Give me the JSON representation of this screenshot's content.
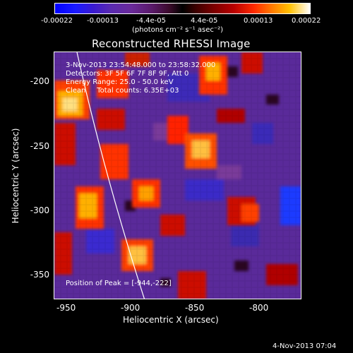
{
  "colorbar": {
    "ticks": [
      "-0.00022",
      "-0.00013",
      "-4.4e-05",
      "4.4e-05",
      "0.00013",
      "0.00022"
    ],
    "units": "(photons cm⁻² s⁻¹ asec⁻²)"
  },
  "plot": {
    "title": "Reconstructed RHESSI Image",
    "annotations": {
      "time_range": "3-Nov-2013 23:54:48.000 to 23:58:32.000",
      "detectors": "Detectors: 3F 5F 6F 7F 8F 9F, Att 0",
      "energy_range": "Energy Range: 25.0 - 50.0 keV",
      "clean_counts": "Clean     Total counts: 6.35E+03",
      "peak_position": "Position of Peak = [-944,-222]"
    },
    "y_axis": {
      "label": "Heliocentric Y (arcsec)",
      "ticks": [
        "-200",
        "-250",
        "-300",
        "-350"
      ]
    },
    "x_axis": {
      "label": "Heliocentric X (arcsec)",
      "ticks": [
        "-950",
        "-900",
        "-850",
        "-800"
      ]
    }
  },
  "timestamp": "4-Nov-2013 07:04"
}
